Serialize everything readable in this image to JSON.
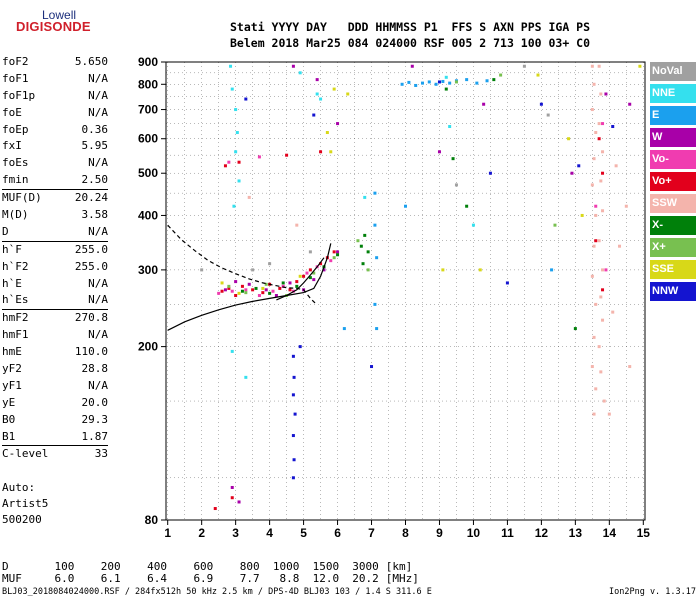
{
  "logo": {
    "line1": "Lowell",
    "line2": "DIGISONDE"
  },
  "header": {
    "line1": "Stati YYYY DAY   DDD HHMMSS P1  FFS S AXN PPS IGA PS",
    "line2": "Belem 2018 Mar25 084 024000 RSF 005 2 713 100 03+ C0"
  },
  "params": [
    {
      "label": "foF2",
      "value": "5.650",
      "sep": false
    },
    {
      "label": "foF1",
      "value": "N/A",
      "sep": false
    },
    {
      "label": "foF1p",
      "value": "N/A",
      "sep": false
    },
    {
      "label": "foE",
      "value": "N/A",
      "sep": false
    },
    {
      "label": "foEp",
      "value": "0.36",
      "sep": false
    },
    {
      "label": "fxI",
      "value": "5.95",
      "sep": false
    },
    {
      "label": "foEs",
      "value": "N/A",
      "sep": false
    },
    {
      "label": "fmin",
      "value": "2.50",
      "sep": false
    },
    {
      "label": "MUF(D)",
      "value": "20.24",
      "sep": true
    },
    {
      "label": "M(D)",
      "value": "3.58",
      "sep": false
    },
    {
      "label": "D",
      "value": "N/A",
      "sep": false
    },
    {
      "label": "h`F",
      "value": "255.0",
      "sep": true
    },
    {
      "label": "h`F2",
      "value": "255.0",
      "sep": false
    },
    {
      "label": "h`E",
      "value": "N/A",
      "sep": false
    },
    {
      "label": "h`Es",
      "value": "N/A",
      "sep": false
    },
    {
      "label": "hmF2",
      "value": "270.8",
      "sep": true
    },
    {
      "label": "hmF1",
      "value": "N/A",
      "sep": false
    },
    {
      "label": "hmE",
      "value": "110.0",
      "sep": false
    },
    {
      "label": "yF2",
      "value": "28.8",
      "sep": false
    },
    {
      "label": "yF1",
      "value": "N/A",
      "sep": false
    },
    {
      "label": "yE",
      "value": "20.0",
      "sep": false
    },
    {
      "label": "B0",
      "value": "29.3",
      "sep": false
    },
    {
      "label": "B1",
      "value": "1.87",
      "sep": false
    },
    {
      "label": "C-level",
      "value": "33",
      "sep": true
    }
  ],
  "auto": {
    "line1": "Auto:",
    "line2": "Artist5",
    "line3": "500200"
  },
  "legend": [
    {
      "label": "NoVal",
      "color": "#a0a0a0"
    },
    {
      "label": "NNE",
      "color": "#34e0ee"
    },
    {
      "label": "E",
      "color": "#1ba0ee"
    },
    {
      "label": "W",
      "color": "#a800a8"
    },
    {
      "label": "Vo-",
      "color": "#f03cb0"
    },
    {
      "label": "Vo+",
      "color": "#e2001c"
    },
    {
      "label": "SSW",
      "color": "#f4b4ac"
    },
    {
      "label": "X-",
      "color": "#00800a"
    },
    {
      "label": "X+",
      "color": "#78c050"
    },
    {
      "label": "SSE",
      "color": "#d8d818"
    },
    {
      "label": "NNW",
      "color": "#1414d0"
    }
  ],
  "muf_table": {
    "d_label": "D",
    "d_values": [
      "100",
      "200",
      "400",
      "600",
      "800",
      "1000",
      "1500",
      "3000"
    ],
    "d_unit": "[km]",
    "muf_label": "MUF",
    "muf_values": [
      "6.0",
      "6.1",
      "6.4",
      "6.9",
      "7.7",
      "8.8",
      "12.0",
      "20.2"
    ],
    "muf_unit": "[MHz]"
  },
  "footer": {
    "text": "BLJ03_2018084024000.RSF / 284fx512h 50 kHz 2.5 km / DPS-4D BLJ03 103 / 1.4 S 311.6 E",
    "version": "Ion2Png v. 1.3.17"
  },
  "chart_data": {
    "type": "scatter",
    "title": "",
    "xlabel": "",
    "ylabel": "",
    "xlim": [
      0.95,
      15.05
    ],
    "ylim": [
      80,
      900
    ],
    "x_ticks": [
      1,
      2,
      3,
      4,
      5,
      6,
      7,
      8,
      9,
      10,
      11,
      12,
      13,
      14,
      15
    ],
    "y_ticks": [
      80,
      200,
      300,
      400,
      500,
      600,
      700,
      800,
      900
    ],
    "grid": true,
    "y_scale": "log",
    "series": [
      {
        "name": "Vo+",
        "color": "#e2001c",
        "points": [
          [
            2.6,
            268
          ],
          [
            2.8,
            272
          ],
          [
            3.0,
            262
          ],
          [
            3.2,
            275
          ],
          [
            3.5,
            270
          ],
          [
            3.8,
            266
          ],
          [
            4.0,
            278
          ],
          [
            4.3,
            272
          ],
          [
            4.6,
            270
          ],
          [
            4.8,
            282
          ],
          [
            5.0,
            290
          ],
          [
            5.2,
            300
          ],
          [
            5.5,
            310
          ],
          [
            5.7,
            320
          ],
          [
            5.9,
            330
          ],
          [
            2.7,
            520
          ],
          [
            3.1,
            530
          ],
          [
            4.5,
            550
          ],
          [
            5.5,
            560
          ],
          [
            13.7,
            600
          ],
          [
            13.8,
            500
          ],
          [
            13.6,
            350
          ],
          [
            13.8,
            270
          ],
          [
            2.4,
            85
          ],
          [
            2.9,
            90
          ]
        ]
      },
      {
        "name": "Vo-",
        "color": "#f03cb0",
        "points": [
          [
            2.5,
            265
          ],
          [
            2.9,
            268
          ],
          [
            3.3,
            270
          ],
          [
            3.7,
            262
          ],
          [
            4.1,
            268
          ],
          [
            4.4,
            275
          ],
          [
            4.7,
            268
          ],
          [
            5.1,
            295
          ],
          [
            5.4,
            305
          ],
          [
            5.8,
            315
          ],
          [
            3.7,
            545
          ],
          [
            2.8,
            530
          ],
          [
            13.8,
            650
          ],
          [
            13.6,
            420
          ],
          [
            13.9,
            300
          ]
        ]
      },
      {
        "name": "W",
        "color": "#a800a8",
        "points": [
          [
            2.7,
            270
          ],
          [
            3.0,
            282
          ],
          [
            3.4,
            278
          ],
          [
            3.9,
            270
          ],
          [
            4.2,
            262
          ],
          [
            4.6,
            280
          ],
          [
            5.0,
            270
          ],
          [
            5.3,
            285
          ],
          [
            5.6,
            300
          ],
          [
            6.0,
            330
          ],
          [
            2.9,
            95
          ],
          [
            3.1,
            88
          ],
          [
            4.7,
            880
          ],
          [
            5.4,
            820
          ],
          [
            6.0,
            650
          ],
          [
            8.2,
            880
          ],
          [
            9.0,
            560
          ],
          [
            10.3,
            720
          ],
          [
            12.9,
            500
          ],
          [
            13.9,
            760
          ],
          [
            14.6,
            720
          ]
        ]
      },
      {
        "name": "NNE",
        "color": "#34e0ee",
        "points": [
          [
            2.85,
            880
          ],
          [
            2.9,
            780
          ],
          [
            3.0,
            700
          ],
          [
            3.05,
            620
          ],
          [
            3.0,
            560
          ],
          [
            3.1,
            480
          ],
          [
            2.95,
            420
          ],
          [
            5.4,
            760
          ],
          [
            5.5,
            740
          ],
          [
            3.3,
            170
          ],
          [
            2.9,
            195
          ],
          [
            9.2,
            830
          ],
          [
            9.3,
            640
          ],
          [
            10.0,
            380
          ],
          [
            6.8,
            440
          ],
          [
            4.9,
            850
          ]
        ]
      },
      {
        "name": "E",
        "color": "#1ba0ee",
        "points": [
          [
            7.9,
            800
          ],
          [
            8.1,
            808
          ],
          [
            8.3,
            795
          ],
          [
            8.5,
            805
          ],
          [
            8.7,
            810
          ],
          [
            8.9,
            800
          ],
          [
            9.1,
            812
          ],
          [
            9.3,
            805
          ],
          [
            9.5,
            815
          ],
          [
            9.8,
            820
          ],
          [
            10.1,
            805
          ],
          [
            10.4,
            815
          ],
          [
            7.1,
            380
          ],
          [
            7.15,
            320
          ],
          [
            7.1,
            250
          ],
          [
            7.15,
            220
          ],
          [
            7.1,
            450
          ],
          [
            8.0,
            420
          ],
          [
            12.3,
            300
          ],
          [
            6.2,
            220
          ]
        ]
      },
      {
        "name": "SSW",
        "color": "#f4b4ac",
        "points": [
          [
            13.5,
            880
          ],
          [
            13.55,
            800
          ],
          [
            13.5,
            700
          ],
          [
            13.6,
            620
          ],
          [
            13.55,
            540
          ],
          [
            13.5,
            470
          ],
          [
            13.6,
            400
          ],
          [
            13.55,
            340
          ],
          [
            13.5,
            290
          ],
          [
            13.6,
            250
          ],
          [
            13.55,
            210
          ],
          [
            13.5,
            180
          ],
          [
            13.6,
            160
          ],
          [
            13.55,
            140
          ],
          [
            13.7,
            880
          ],
          [
            13.75,
            760
          ],
          [
            13.7,
            650
          ],
          [
            13.8,
            560
          ],
          [
            13.75,
            480
          ],
          [
            13.8,
            410
          ],
          [
            13.7,
            350
          ],
          [
            13.8,
            300
          ],
          [
            13.75,
            260
          ],
          [
            13.8,
            230
          ],
          [
            13.7,
            200
          ],
          [
            13.75,
            175
          ],
          [
            13.85,
            150
          ],
          [
            14.0,
            140
          ],
          [
            14.1,
            240
          ],
          [
            14.3,
            340
          ],
          [
            14.6,
            180
          ],
          [
            14.5,
            420
          ],
          [
            14.2,
            520
          ],
          [
            3.4,
            440
          ],
          [
            4.8,
            380
          ]
        ]
      },
      {
        "name": "X-",
        "color": "#00800a",
        "points": [
          [
            3.2,
            268
          ],
          [
            3.6,
            272
          ],
          [
            4.0,
            265
          ],
          [
            4.4,
            280
          ],
          [
            4.8,
            275
          ],
          [
            5.2,
            288
          ],
          [
            5.6,
            305
          ],
          [
            6.0,
            325
          ],
          [
            6.7,
            340
          ],
          [
            6.8,
            360
          ],
          [
            6.9,
            330
          ],
          [
            6.75,
            310
          ],
          [
            9.2,
            780
          ],
          [
            9.4,
            540
          ],
          [
            10.6,
            820
          ],
          [
            9.8,
            420
          ],
          [
            13.0,
            220
          ]
        ]
      },
      {
        "name": "X+",
        "color": "#78c050",
        "points": [
          [
            2.8,
            275
          ],
          [
            3.3,
            266
          ],
          [
            3.9,
            278
          ],
          [
            4.5,
            262
          ],
          [
            5.3,
            295
          ],
          [
            5.9,
            320
          ],
          [
            6.6,
            350
          ],
          [
            6.9,
            300
          ],
          [
            9.5,
            810
          ],
          [
            10.8,
            840
          ],
          [
            12.4,
            380
          ]
        ]
      },
      {
        "name": "SSE",
        "color": "#d8d818",
        "points": [
          [
            2.6,
            280
          ],
          [
            3.1,
            265
          ],
          [
            3.8,
            272
          ],
          [
            4.9,
            290
          ],
          [
            5.8,
            560
          ],
          [
            5.7,
            620
          ],
          [
            5.9,
            780
          ],
          [
            6.3,
            760
          ],
          [
            9.1,
            300
          ],
          [
            10.2,
            300
          ],
          [
            11.9,
            840
          ],
          [
            12.8,
            600
          ],
          [
            14.9,
            880
          ],
          [
            13.2,
            400
          ]
        ]
      },
      {
        "name": "NNW",
        "color": "#1414d0",
        "points": [
          [
            4.7,
            190
          ],
          [
            4.72,
            170
          ],
          [
            4.7,
            155
          ],
          [
            4.75,
            140
          ],
          [
            4.7,
            125
          ],
          [
            4.72,
            110
          ],
          [
            4.7,
            100
          ],
          [
            4.9,
            200
          ],
          [
            3.3,
            740
          ],
          [
            5.3,
            680
          ],
          [
            7.0,
            180
          ],
          [
            9.0,
            810
          ],
          [
            10.5,
            500
          ],
          [
            12.0,
            720
          ],
          [
            13.1,
            520
          ],
          [
            14.1,
            640
          ],
          [
            11.0,
            280
          ]
        ]
      },
      {
        "name": "NoVal",
        "color": "#a0a0a0",
        "points": [
          [
            3.5,
            300
          ],
          [
            4.0,
            310
          ],
          [
            5.2,
            330
          ],
          [
            9.5,
            470
          ],
          [
            11.5,
            880
          ],
          [
            12.2,
            680
          ],
          [
            2.0,
            300
          ]
        ]
      }
    ],
    "curves": [
      {
        "kind": "dashed",
        "points": [
          [
            1.0,
            380
          ],
          [
            1.4,
            352
          ],
          [
            1.8,
            332
          ],
          [
            2.2,
            315
          ],
          [
            2.6,
            303
          ],
          [
            3.0,
            294
          ],
          [
            3.4,
            286
          ],
          [
            3.8,
            280
          ],
          [
            4.2,
            276
          ],
          [
            4.5,
            273
          ],
          [
            4.8,
            272
          ],
          [
            5.0,
            270
          ],
          [
            5.2,
            258
          ],
          [
            5.4,
            249
          ]
        ]
      },
      {
        "kind": "solid",
        "points": [
          [
            1.0,
            218
          ],
          [
            1.5,
            228
          ],
          [
            2.0,
            236
          ],
          [
            2.5,
            243
          ],
          [
            3.0,
            249
          ],
          [
            3.5,
            254
          ],
          [
            4.0,
            258
          ],
          [
            4.5,
            262
          ],
          [
            5.0,
            266
          ],
          [
            5.3,
            272
          ],
          [
            5.5,
            290
          ],
          [
            5.7,
            320
          ],
          [
            5.8,
            345
          ]
        ]
      },
      {
        "kind": "solid",
        "points": [
          [
            4.2,
            256
          ],
          [
            4.5,
            262
          ],
          [
            4.8,
            270
          ],
          [
            5.0,
            280
          ],
          [
            5.2,
            292
          ],
          [
            5.4,
            305
          ],
          [
            5.6,
            320
          ]
        ]
      }
    ]
  }
}
